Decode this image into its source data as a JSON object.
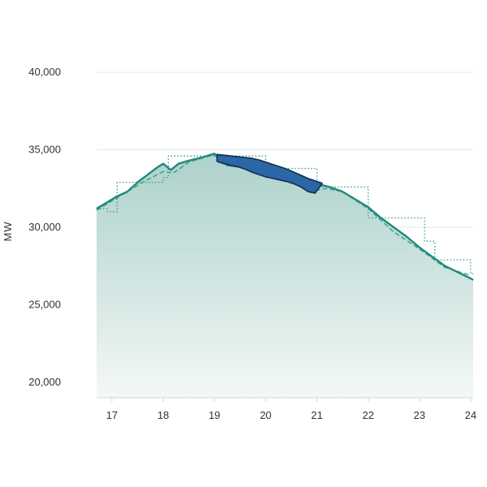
{
  "chart_data": {
    "type": "area",
    "title": "",
    "xlabel": "",
    "ylabel": "MW",
    "xlim": [
      16.7,
      24.05
    ],
    "ylim": [
      19000,
      41000
    ],
    "x_ticks": [
      17,
      18,
      19,
      20,
      21,
      22,
      23,
      24
    ],
    "y_ticks": [
      20000,
      25000,
      30000,
      35000,
      40000
    ],
    "y_tick_labels": [
      "20,000",
      "25,000",
      "30,000",
      "35,000",
      "40,000"
    ],
    "grid": true,
    "colors": {
      "actual": "#1e8a7c",
      "forecast_dashed": "#3aa391",
      "schedule_dotted": "#2f9a89",
      "area_top": "#a9cfc8",
      "area_bottom": "#f4f8f7",
      "highlight_fill": "#2b66a6",
      "highlight_stroke": "#0f2f4f",
      "grid": "#e3e9e8",
      "axis": "#cfd7d6"
    },
    "series": [
      {
        "style": "solid",
        "x": [
          16.7,
          16.9,
          17.1,
          17.3,
          17.5,
          17.7,
          17.9,
          18.0,
          18.15,
          18.3,
          18.5,
          18.75,
          19.0,
          19.25,
          19.5,
          19.75,
          20.0,
          20.25,
          20.5,
          20.75,
          21.0,
          21.25,
          21.5,
          21.75,
          22.0,
          22.25,
          22.5,
          22.75,
          23.0,
          23.25,
          23.5,
          23.75,
          24.0,
          24.05
        ],
        "y": [
          31200,
          31600,
          32000,
          32300,
          32900,
          33400,
          33900,
          34100,
          33700,
          34100,
          34300,
          34500,
          34750,
          34000,
          33900,
          33600,
          33400,
          33250,
          33050,
          32900,
          32800,
          32600,
          32300,
          31800,
          31300,
          30600,
          30000,
          29400,
          28700,
          28100,
          27500,
          27100,
          26700,
          26600
        ]
      },
      {
        "style": "dashed",
        "x": [
          16.7,
          17.0,
          17.3,
          17.6,
          18.0,
          18.2,
          18.5,
          18.8,
          19.0,
          19.1,
          19.5,
          20.0,
          20.5,
          21.0,
          21.2,
          21.5,
          22.0,
          22.5,
          23.0,
          23.5,
          24.0
        ],
        "y": [
          31100,
          31700,
          32300,
          32900,
          33600,
          33500,
          34200,
          34500,
          34700,
          34300,
          34000,
          33500,
          33000,
          32400,
          32500,
          32300,
          31200,
          29700,
          28600,
          27400,
          26900
        ]
      },
      {
        "style": "dotted-step",
        "x": [
          16.7,
          16.9,
          16.9,
          17.1,
          17.1,
          17.5,
          17.5,
          18.0,
          18.0,
          18.1,
          18.1,
          19.0,
          19.0,
          20.0,
          20.0,
          20.6,
          20.6,
          21.0,
          21.0,
          22.0,
          22.0,
          22.1,
          22.1,
          23.0,
          23.0,
          23.1,
          23.1,
          23.3,
          23.3,
          24.0,
          24.0,
          24.05
        ],
        "y": [
          31200,
          31200,
          31000,
          31000,
          32900,
          32900,
          32900,
          32900,
          33200,
          33200,
          34600,
          34600,
          34600,
          34600,
          33800,
          33800,
          33800,
          33800,
          32600,
          32600,
          30600,
          30600,
          30600,
          30600,
          30600,
          30600,
          29100,
          29100,
          27900,
          27900,
          27000,
          27000
        ]
      }
    ],
    "highlight": {
      "x_range": [
        19.05,
        21.1
      ],
      "upper_y": [
        34700,
        34650,
        34600,
        34550,
        34500,
        34450,
        34350,
        34200,
        34050,
        33900,
        33750,
        33550,
        33350,
        33150,
        33000,
        32850
      ],
      "lower_y": [
        34250,
        34100,
        34000,
        33900,
        33750,
        33550,
        33400,
        33250,
        33150,
        33050,
        32950,
        32800,
        32600,
        32300,
        32200,
        32800
      ]
    }
  }
}
